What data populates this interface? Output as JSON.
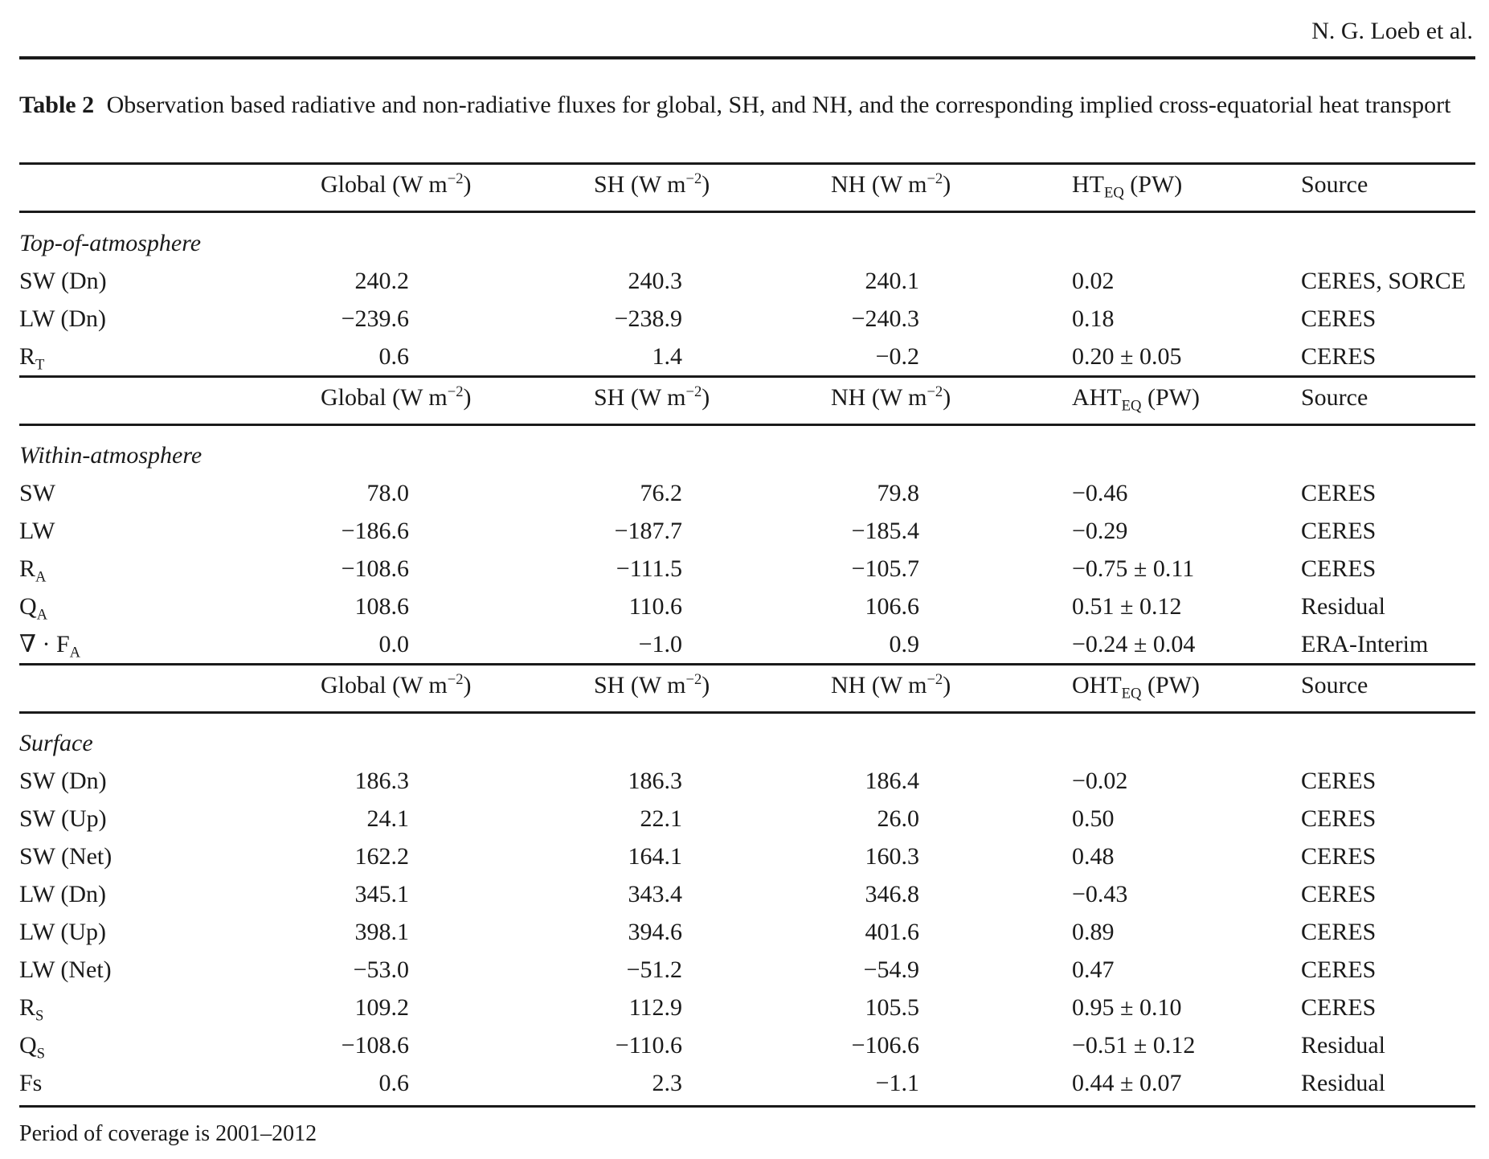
{
  "header": {
    "author": "N. G. Loeb et al."
  },
  "caption": {
    "label": "Table 2",
    "text": "Observation based radiative and non-radiative fluxes for global, SH, and NH, and the corresponding implied cross-equatorial heat transport"
  },
  "column_headers": {
    "global_base": "Global (W m",
    "sh_base": "SH (W m",
    "nh_base": "NH (W m",
    "unit_exp": "−2",
    "close_paren": ")",
    "source": "Source",
    "pw": " (PW)",
    "ht_base": "HT",
    "aht_base": "AHT",
    "oht_base": "OHT",
    "eq_sub": "EQ"
  },
  "sections": {
    "toa": "Top-of-atmosphere",
    "within": "Within-atmosphere",
    "surface": "Surface"
  },
  "toa_rows": [
    {
      "label": "SW (Dn)",
      "global": "240.2",
      "sh": "240.3",
      "nh": "240.1",
      "eq": "0.02",
      "source": "CERES, SORCE"
    },
    {
      "label": "LW (Dn)",
      "global": "−239.6",
      "sh": "−238.9",
      "nh": "−240.3",
      "eq": "0.18",
      "source": "CERES"
    },
    {
      "label_base": "R",
      "label_sub": "T",
      "global": "0.6",
      "sh": "1.4",
      "nh": "−0.2",
      "eq": "0.20 ± 0.05",
      "source": "CERES"
    }
  ],
  "within_rows": [
    {
      "label": "SW",
      "global": "78.0",
      "sh": "76.2",
      "nh": "79.8",
      "eq": "−0.46",
      "source": "CERES"
    },
    {
      "label": "LW",
      "global": "−186.6",
      "sh": "−187.7",
      "nh": "−185.4",
      "eq": "−0.29",
      "source": "CERES"
    },
    {
      "label_base": "R",
      "label_sub": "A",
      "global": "−108.6",
      "sh": "−111.5",
      "nh": "−105.7",
      "eq": "−0.75 ± 0.11",
      "source": "CERES"
    },
    {
      "label_base": "Q",
      "label_sub": "A",
      "global": "108.6",
      "sh": "110.6",
      "nh": "106.6",
      "eq": "0.51 ± 0.12",
      "source": "Residual"
    },
    {
      "label_base": "∇ · F",
      "label_sub": "A",
      "global": "0.0",
      "sh": "−1.0",
      "nh": "0.9",
      "eq": "−0.24 ± 0.04",
      "source": "ERA-Interim"
    }
  ],
  "surface_rows": [
    {
      "label": "SW (Dn)",
      "global": "186.3",
      "sh": "186.3",
      "nh": "186.4",
      "eq": "−0.02",
      "source": "CERES"
    },
    {
      "label": "SW (Up)",
      "global": "24.1",
      "sh": "22.1",
      "nh": "26.0",
      "eq": "0.50",
      "source": "CERES"
    },
    {
      "label": "SW (Net)",
      "global": "162.2",
      "sh": "164.1",
      "nh": "160.3",
      "eq": "0.48",
      "source": "CERES"
    },
    {
      "label": "LW (Dn)",
      "global": "345.1",
      "sh": "343.4",
      "nh": "346.8",
      "eq": "−0.43",
      "source": "CERES"
    },
    {
      "label": "LW (Up)",
      "global": "398.1",
      "sh": "394.6",
      "nh": "401.6",
      "eq": "0.89",
      "source": "CERES"
    },
    {
      "label": "LW (Net)",
      "global": "−53.0",
      "sh": "−51.2",
      "nh": "−54.9",
      "eq": "0.47",
      "source": "CERES"
    },
    {
      "label_base": "R",
      "label_sub": "S",
      "global": "109.2",
      "sh": "112.9",
      "nh": "105.5",
      "eq": "0.95 ± 0.10",
      "source": "CERES"
    },
    {
      "label_base": "Q",
      "label_sub": "S",
      "global": "−108.6",
      "sh": "−110.6",
      "nh": "−106.6",
      "eq": "−0.51 ± 0.12",
      "source": "Residual"
    },
    {
      "label": "Fs",
      "global": "0.6",
      "sh": "2.3",
      "nh": "−1.1",
      "eq": "0.44 ± 0.07",
      "source": "Residual"
    }
  ],
  "footnote": "Period of coverage is 2001–2012"
}
